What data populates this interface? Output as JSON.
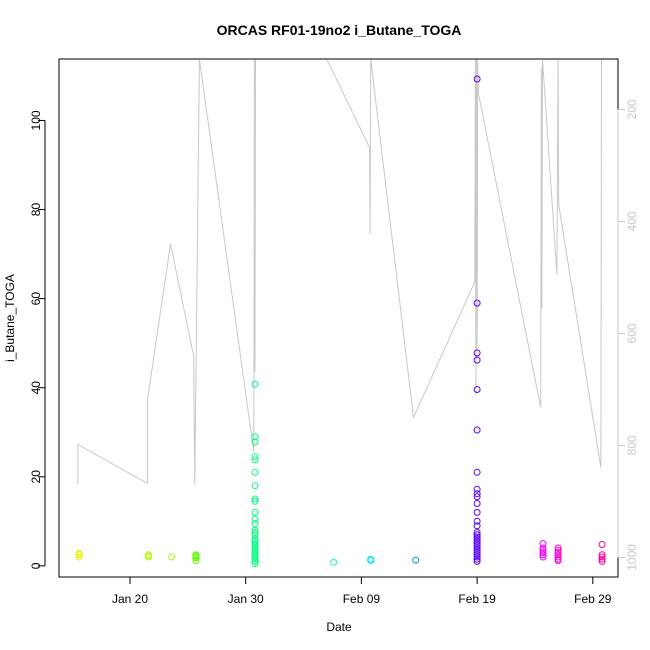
{
  "chart_data": {
    "type": "scatter",
    "title": "ORCAS RF01-19no2 i_Butane_TOGA",
    "xlabel": "Date",
    "ylabel": "i_Butane_TOGA",
    "x_ticks": [
      "Jan 20",
      "Jan 30",
      "Feb 09",
      "Feb 19",
      "Feb 29"
    ],
    "y_ticks": [
      0,
      20,
      40,
      60,
      80,
      100
    ],
    "y_right_ticks": [
      200,
      400,
      600,
      800,
      1000
    ],
    "ylim": [
      -2.5,
      113.8
    ],
    "y_right_lim": [
      1035,
      110
    ],
    "points": [
      {
        "day": 15.6,
        "vals": [
          2.0,
          2.5,
          2.8
        ],
        "color": "#e6f000"
      },
      {
        "day": 21.6,
        "vals": [
          2.0,
          2.2,
          2.5
        ],
        "color": "#b4ff00"
      },
      {
        "day": 23.6,
        "vals": [
          2.0
        ],
        "color": "#a0ff00"
      },
      {
        "day": 25.7,
        "vals": [
          1.2,
          1.8,
          2.0,
          2.3,
          2.5
        ],
        "color": "#5aff00"
      },
      {
        "day": 30.8,
        "vals": [
          0.5,
          1.0,
          1.5,
          2.0,
          2.5,
          3.0,
          3.5,
          4.0,
          4.5,
          5.0,
          5.5,
          6.0,
          7.0,
          7.5,
          8.0,
          9.5,
          10.5,
          12.0,
          14.5,
          15.0,
          18.0,
          21.0,
          23.8,
          24.5,
          27.8,
          29.0,
          40.8
        ],
        "color": "#00ff80"
      },
      {
        "day": 37.6,
        "vals": [
          0.8
        ],
        "color": "#00ffc0"
      },
      {
        "day": 40.8,
        "vals": [
          1.2,
          1.5
        ],
        "color": "#00e6ff"
      },
      {
        "day": 44.7,
        "vals": [
          1.3
        ],
        "color": "#0090ff"
      },
      {
        "day": 50.0,
        "vals": [
          1.0,
          1.5,
          2.0,
          2.5,
          3.0,
          3.5,
          4.0,
          4.5,
          5.0,
          5.5,
          6.0,
          6.5,
          7.0,
          7.5,
          9.0,
          10.0,
          12.0,
          14.0,
          15.5,
          16.2,
          17.2,
          21.0,
          30.5,
          39.6,
          46.2,
          47.8,
          59.0,
          109.3
        ],
        "color": "#5a00ff"
      },
      {
        "day": 55.7,
        "vals": [
          2.0,
          2.5,
          3.0,
          3.5,
          4.0,
          5.0
        ],
        "color": "#f000ff"
      },
      {
        "day": 57.0,
        "vals": [
          1.2,
          1.5,
          2.0,
          2.5,
          3.0,
          3.5,
          4.0
        ],
        "color": "#ff00d2"
      },
      {
        "day": 60.8,
        "vals": [
          1.0,
          1.5,
          2.0,
          2.5,
          4.8
        ],
        "color": "#ff00a0"
      }
    ],
    "altitude_line": {
      "color": "#c8c8c8",
      "points": [
        [
          15.5,
          870
        ],
        [
          15.5,
          798
        ],
        [
          21.5,
          868
        ],
        [
          21.5,
          720
        ],
        [
          23.5,
          440
        ],
        [
          25.5,
          640
        ],
        [
          25.6,
          870
        ],
        [
          26.0,
          110
        ],
        [
          30.7,
          812
        ],
        [
          30.75,
          110
        ],
        [
          30.8,
          668
        ],
        [
          30.85,
          110
        ],
        [
          37.0,
          110
        ],
        [
          40.7,
          268
        ],
        [
          40.75,
          422
        ],
        [
          40.8,
          110
        ],
        [
          44.5,
          750
        ],
        [
          49.8,
          508
        ],
        [
          49.85,
          110
        ],
        [
          49.9,
          710
        ],
        [
          49.95,
          110
        ],
        [
          50.0,
          630
        ],
        [
          50.05,
          110
        ],
        [
          50.1,
          170
        ],
        [
          55.5,
          732
        ],
        [
          55.55,
          125
        ],
        [
          55.6,
          555
        ],
        [
          55.65,
          110
        ],
        [
          56.9,
          495
        ],
        [
          57.0,
          110
        ],
        [
          57.05,
          370
        ],
        [
          60.7,
          840
        ],
        [
          60.75,
          110
        ]
      ]
    }
  }
}
